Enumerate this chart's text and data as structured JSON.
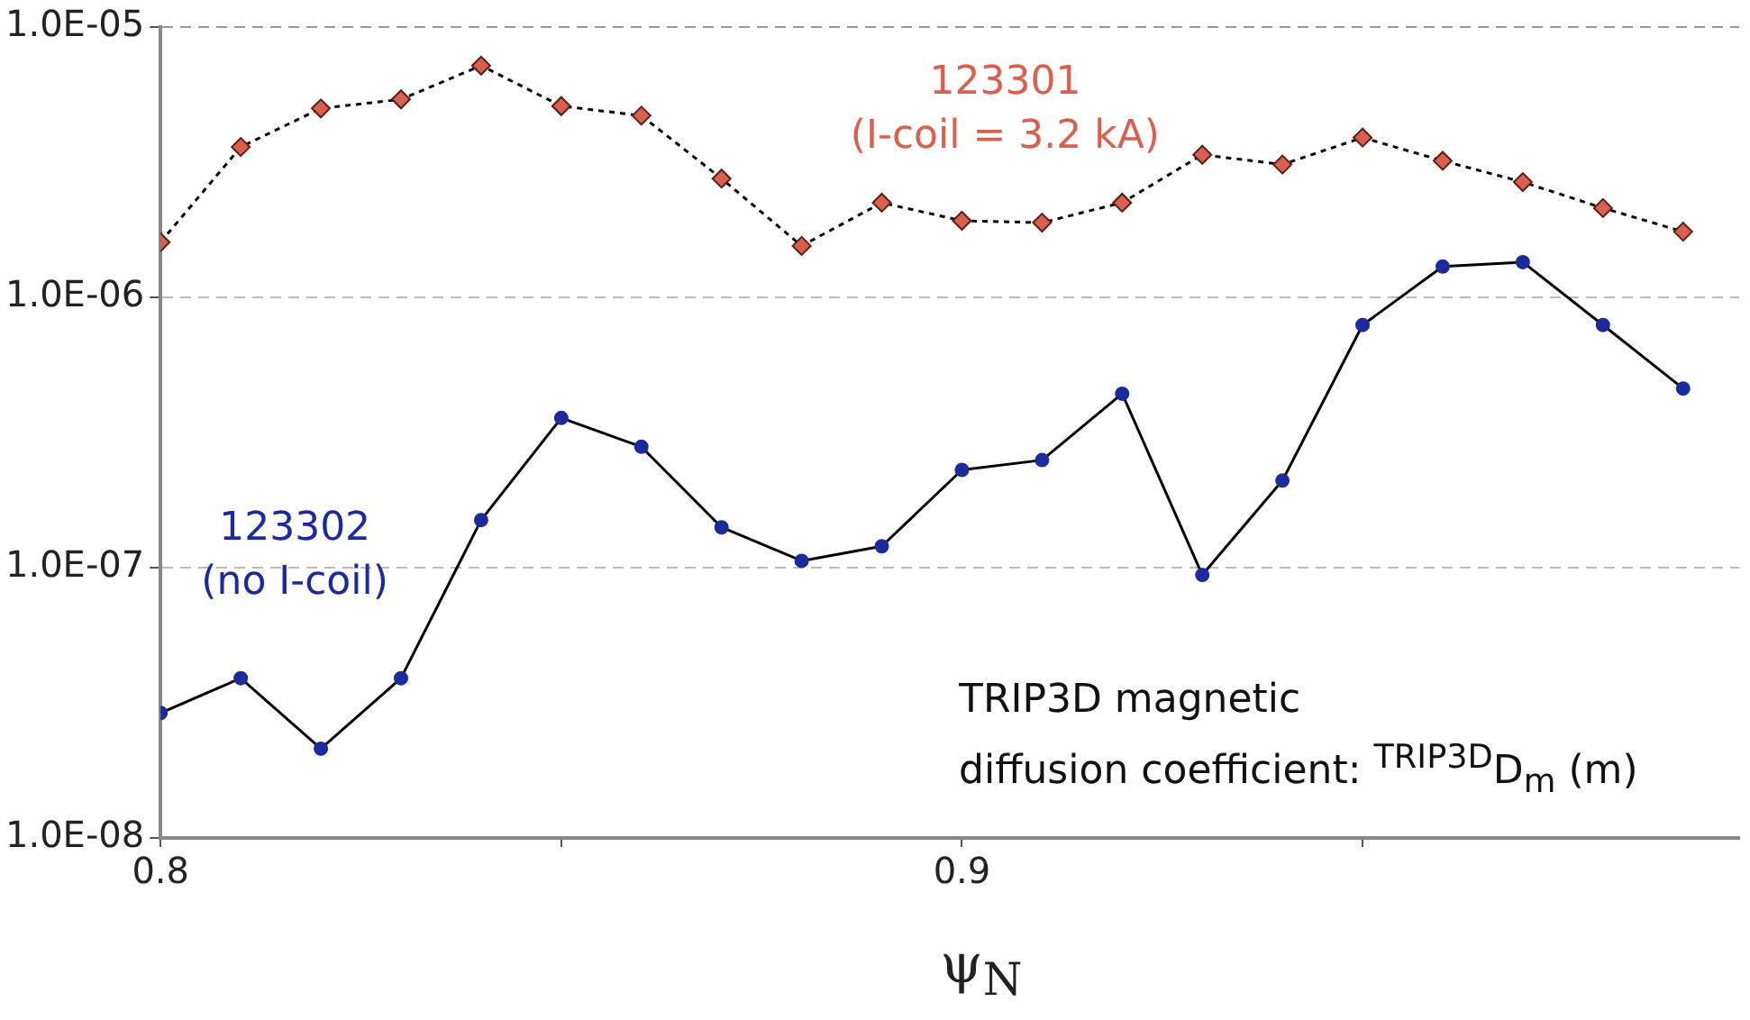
{
  "chart_data": {
    "type": "line",
    "xlabel": "ψ$_{N}$",
    "annotations": [
      "TRIP3D magnetic",
      "diffusion coefficient: $^{TRIP3D}$D$_{m}$ (m)"
    ],
    "x": [
      0.8,
      0.81,
      0.82,
      0.83,
      0.84,
      0.85,
      0.86,
      0.87,
      0.88,
      0.89,
      0.9,
      0.91,
      0.92,
      0.93,
      0.94,
      0.95,
      0.96,
      0.97,
      0.98,
      0.99
    ],
    "series": [
      {
        "name": "123301 (I-coil = 3.2 kA)",
        "color": "#d9604f",
        "marker": "diamond",
        "line_style": "dotted",
        "values": [
          1.6e-06,
          3.6e-06,
          5e-06,
          5.4e-06,
          7.2e-06,
          5.1e-06,
          4.7e-06,
          2.75e-06,
          1.55e-06,
          2.24e-06,
          1.92e-06,
          1.89e-06,
          2.24e-06,
          3.37e-06,
          3.1e-06,
          3.9e-06,
          3.2e-06,
          2.67e-06,
          2.14e-06,
          1.75e-06
        ]
      },
      {
        "name": "123302 (no I-coil)",
        "color": "#1c2a9c",
        "marker": "circle",
        "line_style": "solid",
        "values": [
          2.9e-08,
          3.9e-08,
          2.14e-08,
          3.9e-08,
          1.5e-07,
          3.58e-07,
          2.8e-07,
          1.41e-07,
          1.06e-07,
          1.2e-07,
          2.3e-07,
          2.5e-07,
          4.4e-07,
          9.4e-08,
          2.1e-07,
          7.9e-07,
          1.3e-06,
          1.35e-06,
          7.9e-07,
          4.6e-07
        ]
      }
    ],
    "log": "y",
    "xlim": [
      0.8,
      0.997
    ],
    "xticks": [
      0.8,
      {
        "value": 0.85,
        "label": null
      },
      0.9,
      {
        "value": 0.95,
        "label": null
      }
    ],
    "ylim": [
      1e-08,
      1e-05
    ],
    "yticks": [
      {
        "value": 1e-08,
        "label": "1.0E-08"
      },
      {
        "value": 1e-07,
        "label": "1.0E-07"
      },
      {
        "value": 1e-06,
        "label": "1.0E-06"
      },
      {
        "value": 1e-05,
        "label": "1.0E-05"
      }
    ],
    "grid": "y",
    "legend": false
  }
}
